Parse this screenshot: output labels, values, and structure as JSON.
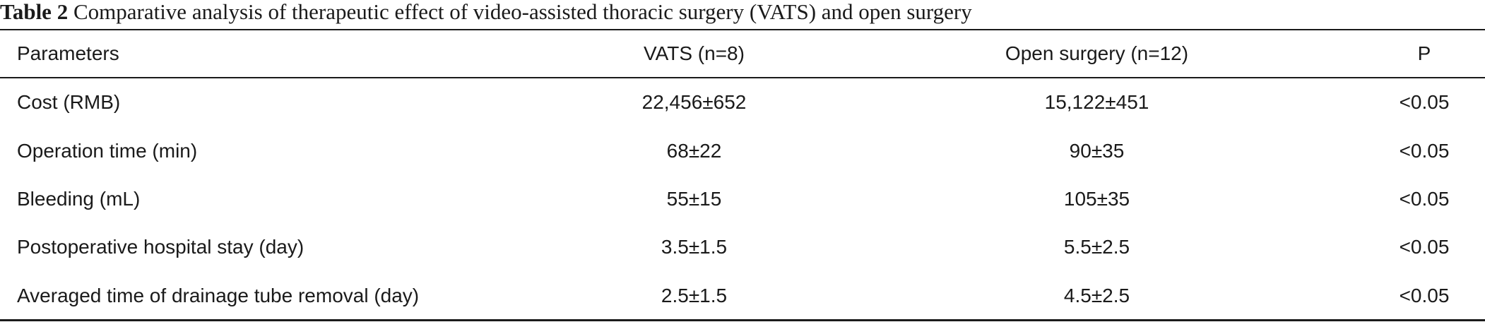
{
  "caption": {
    "label": "Table 2",
    "text": "Comparative analysis of therapeutic effect of video-assisted thoracic surgery (VATS) and open surgery"
  },
  "table": {
    "headers": [
      "Parameters",
      "VATS (n=8)",
      "Open surgery (n=12)",
      "P"
    ],
    "rows": [
      [
        "Cost (RMB)",
        "22,456±652",
        "15,122±451",
        "<0.05"
      ],
      [
        "Operation time (min)",
        "68±22",
        "90±35",
        "<0.05"
      ],
      [
        "Bleeding (mL)",
        "55±15",
        "105±35",
        "<0.05"
      ],
      [
        "Postoperative hospital stay (day)",
        "3.5±1.5",
        "5.5±2.5",
        "<0.05"
      ],
      [
        "Averaged time of drainage tube removal (day)",
        "2.5±1.5",
        "4.5±2.5",
        "<0.05"
      ]
    ]
  }
}
